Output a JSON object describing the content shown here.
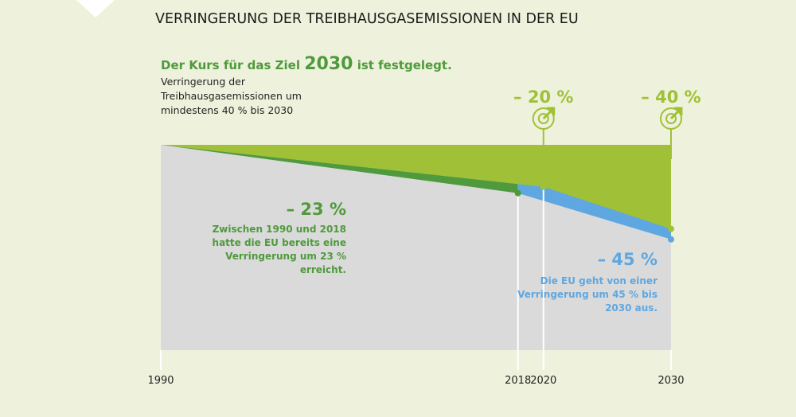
{
  "title": "VERRINGERUNG DER TREIBHAUSGASEMISSIONEN IN DER EU",
  "headline": {
    "pre": "Der Kurs für das Ziel ",
    "year": "2030",
    "post": " ist festgelegt."
  },
  "subtitle_lines": [
    "Verringerung der",
    "Treibhausgasemissionen um",
    "mindestens 40 % bis 2030"
  ],
  "colors": {
    "background": "#eef2dc",
    "target": "#a0c037",
    "actual": "#4f9a3c",
    "projection": "#5fa7e0",
    "remaining": "#dadada"
  },
  "chart_data": {
    "type": "area",
    "x_ticks": [
      "1990",
      "2018",
      "2020",
      "2030"
    ],
    "targets": [
      {
        "year": 2020,
        "value": -20,
        "label": "– 20 %",
        "icon": "target-icon"
      },
      {
        "year": 2030,
        "value": -40,
        "label": "– 40 %",
        "icon": "target-icon"
      }
    ],
    "actual": {
      "points": [
        [
          1990,
          0
        ],
        [
          2018,
          -23
        ]
      ],
      "label": "– 23 %",
      "text": [
        "Zwischen 1990 und 2018",
        "hatte die EU bereits eine",
        "Verringerung um 23 %",
        "erreicht."
      ]
    },
    "projection": {
      "points": [
        [
          2018,
          -23
        ],
        [
          2030,
          -45
        ]
      ],
      "label": "– 45 %",
      "text": [
        "Die EU geht von einer",
        "Verringerung um 45 % bis",
        "2030 aus."
      ]
    }
  }
}
